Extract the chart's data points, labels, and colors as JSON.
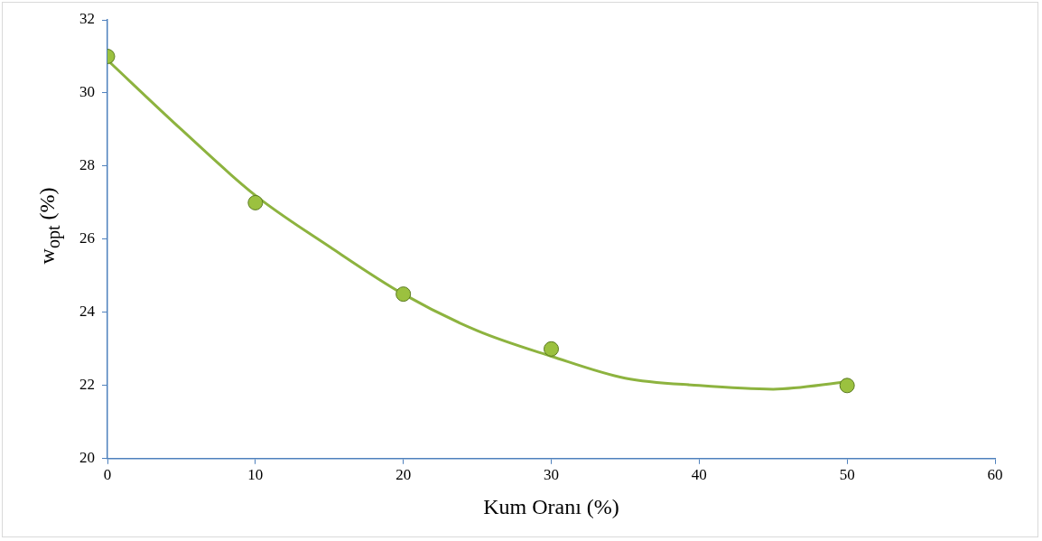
{
  "chart_data": {
    "type": "scatter",
    "xlabel": "Kum Oranı (%)",
    "ylabel": "w$_{opt}$ (%)",
    "x": [
      0,
      10,
      20,
      30,
      50
    ],
    "series": [
      {
        "color": "#9bc13f",
        "values": [
          31,
          27,
          24.5,
          23,
          22
        ]
      },
      {
        "type": "line",
        "marker": "none",
        "color": "#8db33f",
        "x": [
          0,
          5,
          10,
          15,
          20,
          25,
          30,
          35,
          40,
          45,
          50
        ],
        "values": [
          30.9,
          29.0,
          27.2,
          25.8,
          24.5,
          23.5,
          22.8,
          22.2,
          22.0,
          21.9,
          22.1
        ]
      }
    ],
    "marker": "circle",
    "xlim": [
      0,
      60
    ],
    "xticks": [
      0,
      10,
      20,
      30,
      40,
      50,
      60
    ],
    "ylim": [
      20,
      32
    ],
    "yticks": [
      20,
      22,
      24,
      26,
      28,
      30,
      32
    ]
  }
}
